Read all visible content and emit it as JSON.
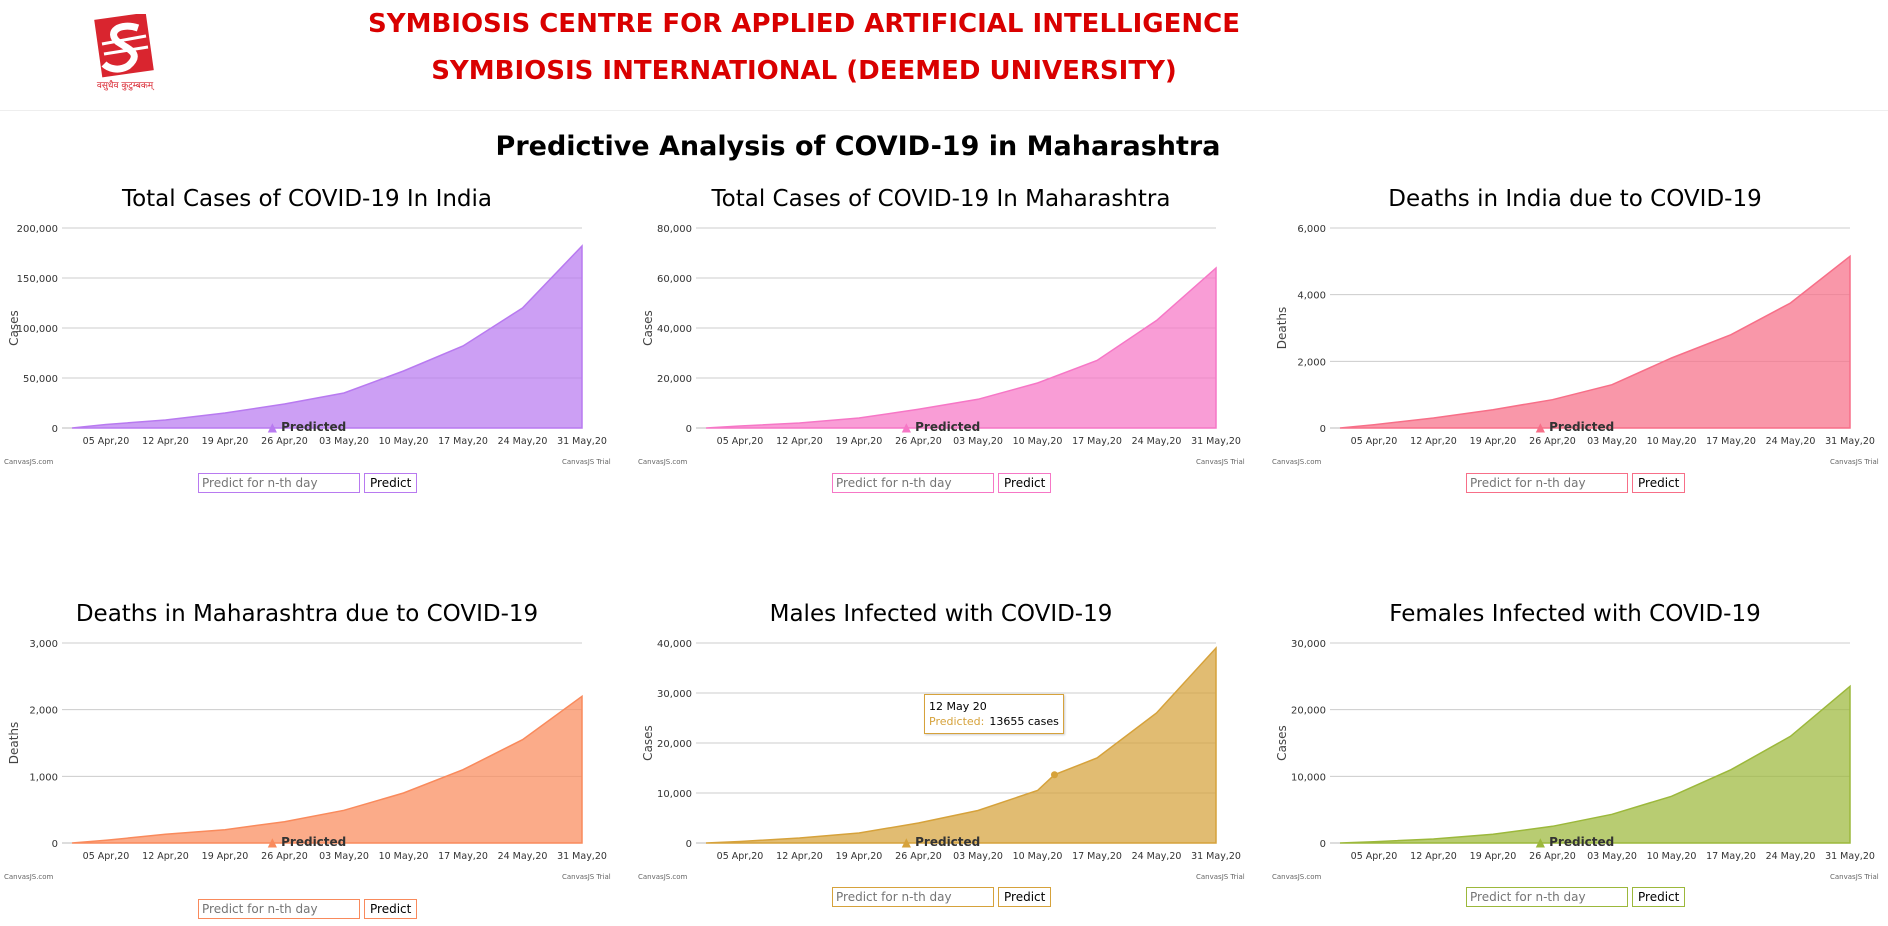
{
  "header": {
    "line1": "SYMBIOSIS CENTRE FOR APPLIED ARTIFICIAL INTELLIGENCE",
    "line2": "SYMBIOSIS INTERNATIONAL (DEEMED UNIVERSITY)",
    "logo_motto": "वसुधैव कुटुम्बकम्",
    "title_color": "#d90000"
  },
  "page_title": "Predictive Analysis of COVID-19 in Maharashtra",
  "charts": [
    {
      "title": "Total Cases of COVID-19 In India",
      "ylabel": "Cases",
      "color": "#b87af0",
      "legend": "Predicted",
      "credit_left": "CanvasJS.com",
      "credit_right": "CanvasJS Trial",
      "input_placeholder": "Predict for n-th day",
      "button": "Predict"
    },
    {
      "title": "Total Cases of COVID-19 In Maharashtra",
      "ylabel": "Cases",
      "color": "#f677c6",
      "legend": "Predicted",
      "credit_left": "CanvasJS.com",
      "credit_right": "CanvasJS Trial",
      "input_placeholder": "Predict for n-th day",
      "button": "Predict"
    },
    {
      "title": "Deaths in India due to COVID-19",
      "ylabel": "Deaths",
      "color": "#f76f88",
      "legend": "Predicted",
      "credit_left": "CanvasJS.com",
      "credit_right": "CanvasJS Trial",
      "input_placeholder": "Predict for n-th day",
      "button": "Predict"
    },
    {
      "title": "Deaths in Maharashtra due to COVID-19",
      "ylabel": "Deaths",
      "color": "#f98a5c",
      "legend": "Predicted",
      "credit_left": "CanvasJS.com",
      "credit_right": "CanvasJS Trial",
      "input_placeholder": "Predict for n-th day",
      "button": "Predict"
    },
    {
      "title": "Males Infected with COVID-19",
      "ylabel": "Cases",
      "color": "#d6a23b",
      "legend": "Predicted",
      "credit_left": "CanvasJS.com",
      "credit_right": "CanvasJS Trial",
      "input_placeholder": "Predict for n-th day",
      "button": "Predict",
      "tooltip": {
        "date": "12 May 20",
        "label": "Predicted:",
        "value": "13655 cases"
      }
    },
    {
      "title": "Females Infected with COVID-19",
      "ylabel": "Cases",
      "color": "#9cb83b",
      "legend": "Predicted",
      "credit_left": "CanvasJS.com",
      "credit_right": "CanvasJS Trial",
      "input_placeholder": "Predict for n-th day",
      "button": "Predict"
    }
  ],
  "chart_data": [
    {
      "type": "area",
      "title": "Total Cases of COVID-19 In India",
      "ylabel": "Cases",
      "x_ticks": [
        "05 Apr,20",
        "12 Apr,20",
        "19 Apr,20",
        "26 Apr,20",
        "03 May,20",
        "10 May,20",
        "17 May,20",
        "24 May,20",
        "31 May,20"
      ],
      "y_ticks": [
        "0",
        "50,000",
        "100,000",
        "150,000",
        "200,000"
      ],
      "ylim": [
        0,
        200000
      ],
      "series": [
        {
          "name": "Predicted",
          "x": [
            "2020-04-01",
            "2020-04-05",
            "2020-04-12",
            "2020-04-19",
            "2020-04-26",
            "2020-05-03",
            "2020-05-10",
            "2020-05-17",
            "2020-05-24",
            "2020-05-31"
          ],
          "values": [
            0,
            3500,
            8000,
            15000,
            24000,
            35000,
            57000,
            82000,
            120000,
            182000
          ]
        }
      ]
    },
    {
      "type": "area",
      "title": "Total Cases of COVID-19 In Maharashtra",
      "ylabel": "Cases",
      "x_ticks": [
        "05 Apr,20",
        "12 Apr,20",
        "19 Apr,20",
        "26 Apr,20",
        "03 May,20",
        "10 May,20",
        "17 May,20",
        "24 May,20",
        "31 May,20"
      ],
      "y_ticks": [
        "0",
        "20,000",
        "40,000",
        "60,000",
        "80,000"
      ],
      "ylim": [
        0,
        80000
      ],
      "series": [
        {
          "name": "Predicted",
          "x": [
            "2020-04-01",
            "2020-04-05",
            "2020-04-12",
            "2020-04-19",
            "2020-04-26",
            "2020-05-03",
            "2020-05-10",
            "2020-05-17",
            "2020-05-24",
            "2020-05-31"
          ],
          "values": [
            0,
            800,
            2000,
            4000,
            7500,
            11500,
            18000,
            27000,
            43000,
            64000
          ]
        }
      ]
    },
    {
      "type": "area",
      "title": "Deaths in India due to COVID-19",
      "ylabel": "Deaths",
      "x_ticks": [
        "05 Apr,20",
        "12 Apr,20",
        "19 Apr,20",
        "26 Apr,20",
        "03 May,20",
        "10 May,20",
        "17 May,20",
        "24 May,20",
        "31 May,20"
      ],
      "y_ticks": [
        "0",
        "2,000",
        "4,000",
        "6,000"
      ],
      "ylim": [
        0,
        6000
      ],
      "series": [
        {
          "name": "Predicted",
          "x": [
            "2020-04-01",
            "2020-04-05",
            "2020-04-12",
            "2020-04-19",
            "2020-04-26",
            "2020-05-03",
            "2020-05-10",
            "2020-05-17",
            "2020-05-24",
            "2020-05-31"
          ],
          "values": [
            0,
            100,
            300,
            550,
            850,
            1300,
            2100,
            2800,
            3750,
            5150
          ]
        }
      ]
    },
    {
      "type": "area",
      "title": "Deaths in Maharashtra due to COVID-19",
      "ylabel": "Deaths",
      "x_ticks": [
        "05 Apr,20",
        "12 Apr,20",
        "19 Apr,20",
        "26 Apr,20",
        "03 May,20",
        "10 May,20",
        "17 May,20",
        "24 May,20",
        "31 May,20"
      ],
      "y_ticks": [
        "0",
        "1,000",
        "2,000",
        "3,000"
      ],
      "ylim": [
        0,
        3000
      ],
      "series": [
        {
          "name": "Predicted",
          "x": [
            "2020-04-01",
            "2020-04-05",
            "2020-04-12",
            "2020-04-19",
            "2020-04-26",
            "2020-05-03",
            "2020-05-10",
            "2020-05-17",
            "2020-05-24",
            "2020-05-31"
          ],
          "values": [
            0,
            40,
            130,
            200,
            320,
            490,
            750,
            1100,
            1550,
            2200
          ]
        }
      ]
    },
    {
      "type": "area",
      "title": "Males Infected with COVID-19",
      "ylabel": "Cases",
      "x_ticks": [
        "05 Apr,20",
        "12 Apr,20",
        "19 Apr,20",
        "26 Apr,20",
        "03 May,20",
        "10 May,20",
        "17 May,20",
        "24 May,20",
        "31 May,20"
      ],
      "y_ticks": [
        "0",
        "10,000",
        "20,000",
        "30,000",
        "40,000"
      ],
      "ylim": [
        0,
        40000
      ],
      "series": [
        {
          "name": "Predicted",
          "x": [
            "2020-04-01",
            "2020-04-05",
            "2020-04-12",
            "2020-04-19",
            "2020-04-26",
            "2020-05-03",
            "2020-05-10",
            "2020-05-12",
            "2020-05-17",
            "2020-05-24",
            "2020-05-31"
          ],
          "values": [
            0,
            300,
            1000,
            2000,
            4000,
            6500,
            10500,
            13655,
            17000,
            26000,
            39000
          ]
        }
      ]
    },
    {
      "type": "area",
      "title": "Females Infected with COVID-19",
      "ylabel": "Cases",
      "x_ticks": [
        "05 Apr,20",
        "12 Apr,20",
        "19 Apr,20",
        "26 Apr,20",
        "03 May,20",
        "10 May,20",
        "17 May,20",
        "24 May,20",
        "31 May,20"
      ],
      "y_ticks": [
        "0",
        "10,000",
        "20,000",
        "30,000"
      ],
      "ylim": [
        0,
        30000
      ],
      "series": [
        {
          "name": "Predicted",
          "x": [
            "2020-04-01",
            "2020-04-05",
            "2020-04-12",
            "2020-04-19",
            "2020-04-26",
            "2020-05-03",
            "2020-05-10",
            "2020-05-17",
            "2020-05-24",
            "2020-05-31"
          ],
          "values": [
            0,
            200,
            600,
            1300,
            2500,
            4300,
            7000,
            11000,
            16000,
            23500
          ]
        }
      ]
    }
  ]
}
